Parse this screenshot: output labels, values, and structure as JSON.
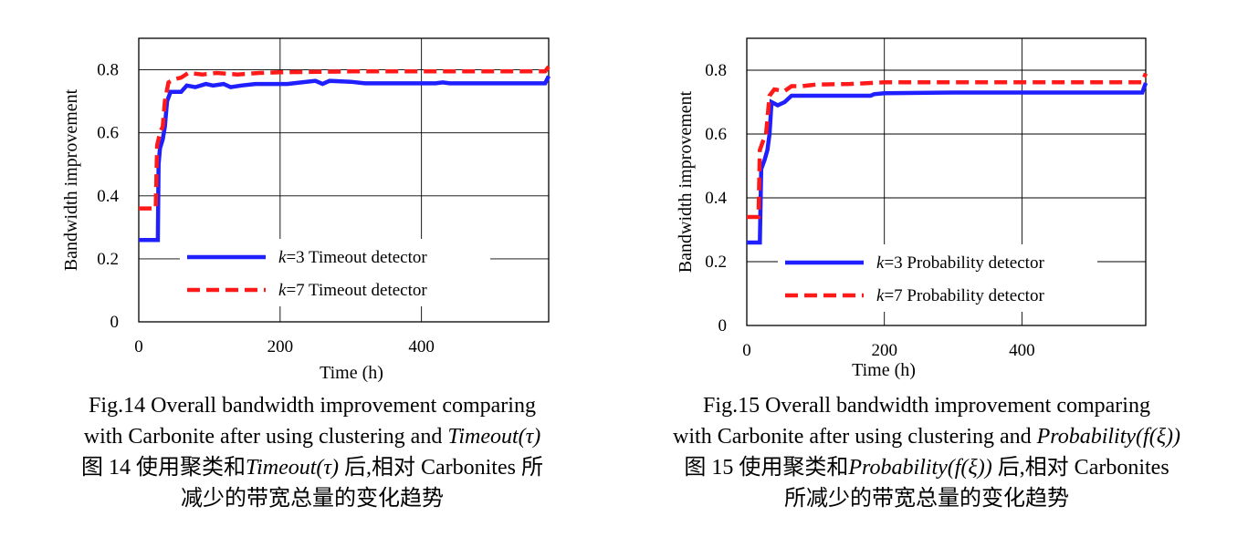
{
  "chart_data": [
    {
      "type": "line",
      "xlabel": "Time (h)",
      "ylabel": "Bandwidth improvement",
      "xlim": [
        0,
        580
      ],
      "ylim": [
        0,
        0.9
      ],
      "xticks": [
        "0",
        "200",
        "400"
      ],
      "xtick_values": [
        0,
        200,
        400
      ],
      "yticks": [
        "0",
        "0.2",
        "0.4",
        "0.6",
        "0.8"
      ],
      "ytick_values": [
        0,
        0.2,
        0.4,
        0.6,
        0.8
      ],
      "grid": true,
      "legend_position": "bottom-center",
      "series": [
        {
          "name": "k=3 Timeout detector",
          "k_label": "k",
          "rest_label": "=3 Timeout detector",
          "color": "#1f1fff",
          "style": "solid",
          "points": [
            [
              0,
              0.26
            ],
            [
              27,
              0.26
            ],
            [
              28,
              0.5
            ],
            [
              30,
              0.55
            ],
            [
              34,
              0.58
            ],
            [
              37,
              0.62
            ],
            [
              40,
              0.7
            ],
            [
              45,
              0.73
            ],
            [
              60,
              0.73
            ],
            [
              68,
              0.75
            ],
            [
              80,
              0.745
            ],
            [
              95,
              0.755
            ],
            [
              105,
              0.75
            ],
            [
              120,
              0.755
            ],
            [
              130,
              0.745
            ],
            [
              145,
              0.75
            ],
            [
              165,
              0.755
            ],
            [
              210,
              0.755
            ],
            [
              230,
              0.76
            ],
            [
              250,
              0.765
            ],
            [
              260,
              0.755
            ],
            [
              270,
              0.765
            ],
            [
              300,
              0.762
            ],
            [
              320,
              0.757
            ],
            [
              420,
              0.757
            ],
            [
              430,
              0.76
            ],
            [
              440,
              0.757
            ],
            [
              575,
              0.757
            ],
            [
              580,
              0.78
            ]
          ]
        },
        {
          "name": "k=7 Timeout detector",
          "k_label": "k",
          "rest_label": "=7 Timeout detector",
          "color": "#ff1a1a",
          "style": "dashed",
          "points": [
            [
              0,
              0.36
            ],
            [
              24,
              0.36
            ],
            [
              26,
              0.56
            ],
            [
              30,
              0.6
            ],
            [
              34,
              0.62
            ],
            [
              37,
              0.7
            ],
            [
              42,
              0.76
            ],
            [
              50,
              0.77
            ],
            [
              60,
              0.775
            ],
            [
              70,
              0.79
            ],
            [
              90,
              0.785
            ],
            [
              110,
              0.79
            ],
            [
              140,
              0.785
            ],
            [
              170,
              0.79
            ],
            [
              200,
              0.792
            ],
            [
              300,
              0.795
            ],
            [
              575,
              0.795
            ],
            [
              580,
              0.81
            ]
          ]
        }
      ]
    },
    {
      "type": "line",
      "xlabel": "Time (h)",
      "ylabel": "Bandwidth improvement",
      "xlim": [
        0,
        580
      ],
      "ylim": [
        0,
        0.9
      ],
      "xticks": [
        "0",
        "200",
        "400"
      ],
      "xtick_values": [
        0,
        200,
        400
      ],
      "yticks": [
        "0",
        "0.2",
        "0.4",
        "0.6",
        "0.8"
      ],
      "ytick_values": [
        0,
        0.2,
        0.4,
        0.6,
        0.8
      ],
      "grid": true,
      "legend_position": "bottom-center",
      "series": [
        {
          "name": "k=3 Probability detector",
          "k_label": "k",
          "rest_label": "=3 Probability detector",
          "color": "#1f1fff",
          "style": "solid",
          "points": [
            [
              0,
              0.26
            ],
            [
              19,
              0.26
            ],
            [
              21,
              0.49
            ],
            [
              26,
              0.52
            ],
            [
              30,
              0.55
            ],
            [
              33,
              0.6
            ],
            [
              36,
              0.7
            ],
            [
              45,
              0.69
            ],
            [
              55,
              0.7
            ],
            [
              65,
              0.72
            ],
            [
              80,
              0.72
            ],
            [
              180,
              0.72
            ],
            [
              185,
              0.725
            ],
            [
              200,
              0.728
            ],
            [
              300,
              0.73
            ],
            [
              575,
              0.73
            ],
            [
              580,
              0.76
            ]
          ]
        },
        {
          "name": "k=7 Probability detector",
          "k_label": "k",
          "rest_label": "=7 Probability detector",
          "color": "#ff1a1a",
          "style": "dashed",
          "points": [
            [
              0,
              0.34
            ],
            [
              17,
              0.34
            ],
            [
              19,
              0.55
            ],
            [
              24,
              0.58
            ],
            [
              28,
              0.6
            ],
            [
              33,
              0.72
            ],
            [
              40,
              0.74
            ],
            [
              55,
              0.735
            ],
            [
              65,
              0.75
            ],
            [
              80,
              0.75
            ],
            [
              100,
              0.755
            ],
            [
              150,
              0.757
            ],
            [
              200,
              0.762
            ],
            [
              300,
              0.762
            ],
            [
              575,
              0.762
            ],
            [
              580,
              0.79
            ]
          ]
        }
      ]
    }
  ],
  "captions": [
    {
      "en_line1": "Fig.14    Overall bandwidth improvement comparing",
      "en_line2_prefix": "with Carbonite after using clustering and",
      "en_line2_method": "Timeout",
      "en_line2_param": "(τ)",
      "zh_line1_prefix": "图 14    使用聚类和",
      "zh_line1_method": "Timeout",
      "zh_line1_param": "(τ)",
      "zh_line1_suffix": "后,相对 Carbonites 所",
      "zh_line2": "减少的带宽总量的变化趋势"
    },
    {
      "en_line1": "Fig.15    Overall bandwidth improvement comparing",
      "en_line2_prefix": "with Carbonite after using clustering and",
      "en_line2_method": "Probability",
      "en_line2_param": "(f(ξ))",
      "zh_line1_prefix": "图 15    使用聚类和",
      "zh_line1_method": "Probability",
      "zh_line1_param": "(f(ξ))",
      "zh_line1_suffix": "后,相对 Carbonites",
      "zh_line2": "所减少的带宽总量的变化趋势"
    }
  ]
}
